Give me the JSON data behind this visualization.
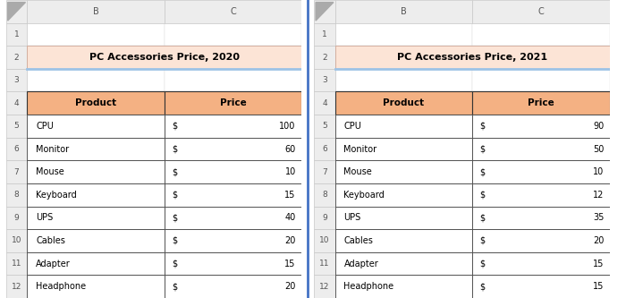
{
  "sheet1_title": "PC Accessories Price, 2020",
  "sheet2_title": "PC Accessories Price, 2021",
  "products": [
    "CPU",
    "Monitor",
    "Mouse",
    "Keyboard",
    "UPS",
    "Cables",
    "Adapter",
    "Headphone"
  ],
  "prices_2020": [
    100,
    60,
    10,
    15,
    40,
    20,
    15,
    20
  ],
  "prices_2021": [
    90,
    50,
    10,
    12,
    35,
    20,
    15,
    15
  ],
  "header_bg": "#F4B183",
  "title_bg": "#FCE4D6",
  "row_bg_white": "#FFFFFF",
  "col_header_bg": "#EDEDED",
  "col_header_border": "#C8C8C8",
  "cell_border_dark": "#555555",
  "cell_border_light": "#D0D0D0",
  "underline_color": "#9DC3E6",
  "divider_color": "#4472C4",
  "text_color": "#000000",
  "row_num_color": "#555555"
}
